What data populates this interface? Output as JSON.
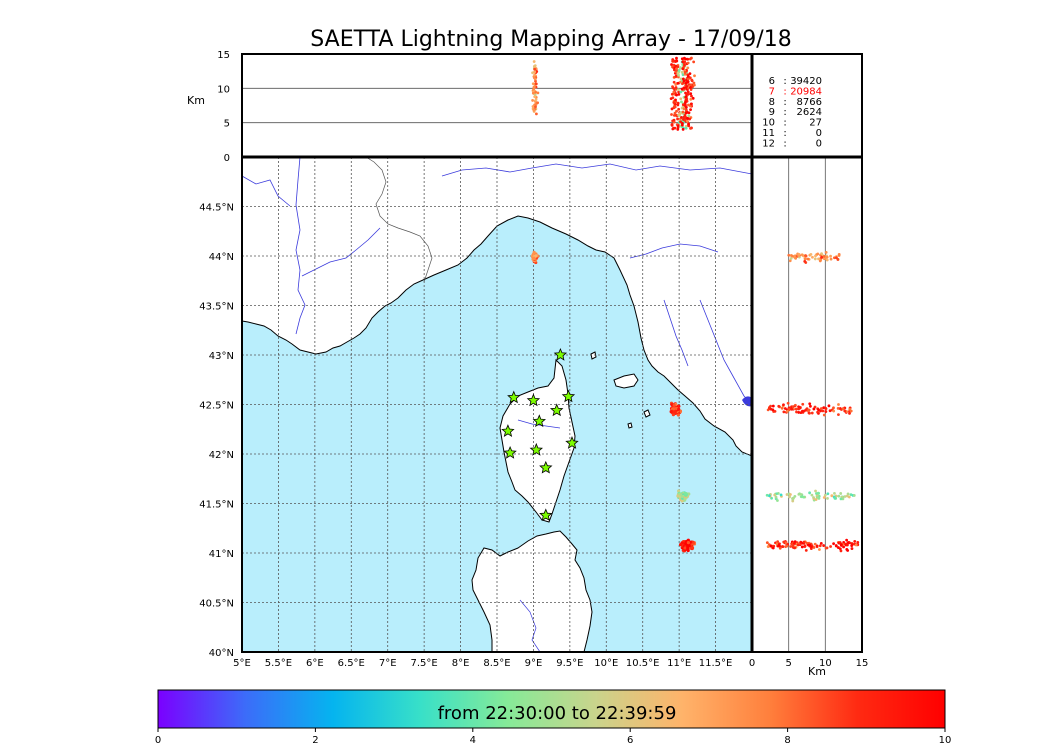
{
  "title": "SAETTA Lightning Mapping Array - 17/09/18",
  "colors": {
    "sea": "#b9eefc",
    "land": "#ffffff",
    "coast": "#000000",
    "rivers": "#3b3bdc",
    "borders": "#555555",
    "grid": "#555555",
    "station_fill": "#7cfc00",
    "count_highlight": "#ff0000"
  },
  "station_icon": "star-icon",
  "chart_data": [
    {
      "type": "scatter",
      "panel": "map",
      "xlabel": "",
      "ylabel": "",
      "xlim": [
        5.0,
        12.0
      ],
      "ylim": [
        40.0,
        45.0
      ],
      "xticks": [
        "5°E",
        "5.5°E",
        "6°E",
        "6.5°E",
        "7°E",
        "7.5°E",
        "8°E",
        "8.5°E",
        "9°E",
        "9.5°E",
        "10°E",
        "10.5°E",
        "11°E",
        "11.5°E"
      ],
      "yticks": [
        "40°N",
        "40.5°N",
        "41°N",
        "41.5°N",
        "42°N",
        "42.5°N",
        "43°N",
        "43.5°N",
        "44°N",
        "44.5°N"
      ],
      "grid": true,
      "clusters": [
        {
          "lon": 9.02,
          "lat": 43.99,
          "time_min": 7.3,
          "n": 60,
          "spread": [
            0.04,
            0.05
          ]
        },
        {
          "lon": 10.95,
          "lat": 42.45,
          "time_min": 9.0,
          "n": 90,
          "spread": [
            0.07,
            0.06
          ]
        },
        {
          "lon": 11.05,
          "lat": 41.57,
          "time_min": 5.0,
          "n": 70,
          "spread": [
            0.08,
            0.06
          ]
        },
        {
          "lon": 11.1,
          "lat": 41.08,
          "time_min": 9.2,
          "n": 120,
          "spread": [
            0.12,
            0.06
          ]
        }
      ],
      "stations": [
        {
          "lon": 9.37,
          "lat": 43.0
        },
        {
          "lon": 8.73,
          "lat": 42.57
        },
        {
          "lon": 9.0,
          "lat": 42.54
        },
        {
          "lon": 9.48,
          "lat": 42.58
        },
        {
          "lon": 9.08,
          "lat": 42.33
        },
        {
          "lon": 9.32,
          "lat": 42.44
        },
        {
          "lon": 8.65,
          "lat": 42.23
        },
        {
          "lon": 9.53,
          "lat": 42.11
        },
        {
          "lon": 8.68,
          "lat": 42.01
        },
        {
          "lon": 9.04,
          "lat": 42.04
        },
        {
          "lon": 9.17,
          "lat": 41.86
        },
        {
          "lon": 9.17,
          "lat": 41.38
        }
      ]
    },
    {
      "type": "scatter",
      "panel": "altitude-longitude",
      "xlim": [
        5.0,
        12.0
      ],
      "ylim": [
        0,
        15
      ],
      "yticks": [
        "0",
        "5",
        "10",
        "15"
      ],
      "ylabel": "Km",
      "clusters": [
        {
          "lon": 9.02,
          "alt_min": 6,
          "alt_max": 14,
          "time_min": 7.3
        },
        {
          "lon": 11.05,
          "alt_min": 4,
          "alt_max": 14.5,
          "time_min": 9.0
        }
      ]
    },
    {
      "type": "scatter",
      "panel": "latitude-altitude",
      "xlim": [
        0,
        15
      ],
      "xticks": [
        "0",
        "5",
        "10",
        "15"
      ],
      "xlabel": "Km",
      "ylim": [
        40.0,
        45.0
      ],
      "clusters": [
        {
          "lat": 43.99,
          "alt_min": 5,
          "alt_max": 12,
          "time_min": 7.5
        },
        {
          "lat": 42.45,
          "alt_min": 2,
          "alt_max": 14,
          "time_min": 9.0
        },
        {
          "lat": 41.58,
          "alt_min": 2,
          "alt_max": 14,
          "time_min": 5.0
        },
        {
          "lat": 41.08,
          "alt_min": 2,
          "alt_max": 14.5,
          "time_min": 9.2
        }
      ]
    },
    {
      "type": "table",
      "panel": "station-count",
      "rows": [
        {
          "stations": "6",
          "count": "39420",
          "highlight": false
        },
        {
          "stations": "7",
          "count": "20984",
          "highlight": true
        },
        {
          "stations": "8",
          "count": "8766",
          "highlight": false
        },
        {
          "stations": "9",
          "count": "2624",
          "highlight": false
        },
        {
          "stations": "10",
          "count": "27",
          "highlight": false
        },
        {
          "stations": "11",
          "count": "0",
          "highlight": false
        },
        {
          "stations": "12",
          "count": "0",
          "highlight": false
        }
      ]
    }
  ],
  "colorbar": {
    "label": "from 22:30:00 to 22:39:59",
    "ticks": [
      "0",
      "2",
      "4",
      "6",
      "8",
      "10"
    ],
    "range": [
      0,
      10
    ],
    "stops": [
      "#7b00ff",
      "#3c6cf9",
      "#05b4ef",
      "#38e0c8",
      "#86ea98",
      "#c9d48c",
      "#ffb36a",
      "#ff7f3c",
      "#ff2a12",
      "#ff0000"
    ]
  }
}
